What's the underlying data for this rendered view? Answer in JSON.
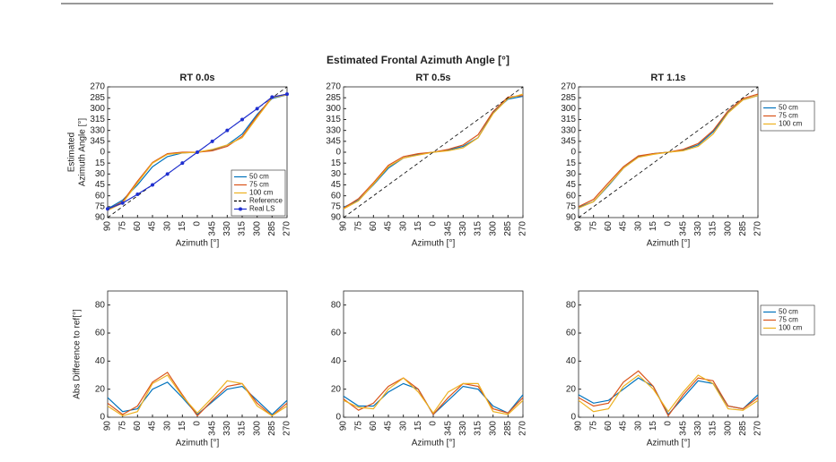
{
  "title": "Estimated Frontal Azimuth Angle [°]",
  "chart_data": [
    {
      "type": "line",
      "title": "RT 0.0s",
      "xlabel": "Azimuth [°]",
      "ylabel": [
        "Estimated",
        "Azimuth Angle [°]"
      ],
      "legend": "lower right",
      "x": [
        90,
        75,
        60,
        45,
        30,
        15,
        0,
        -15,
        -30,
        -45,
        -60,
        -75,
        -90
      ],
      "xlim": [
        90,
        -90
      ],
      "xticks": [
        90,
        75,
        60,
        45,
        30,
        15,
        0,
        {
          "value": -15,
          "label": "345"
        },
        {
          "value": -30,
          "label": "330"
        },
        {
          "value": -45,
          "label": "315"
        },
        {
          "value": -60,
          "label": "300"
        },
        {
          "value": -75,
          "label": "285"
        },
        {
          "value": -90,
          "label": "270"
        }
      ],
      "ylim": [
        90,
        -90
      ],
      "yticks": [
        {
          "value": -90,
          "label": "270"
        },
        {
          "value": -75,
          "label": "285"
        },
        {
          "value": -60,
          "label": "300"
        },
        {
          "value": -45,
          "label": "315"
        },
        {
          "value": -30,
          "label": "330"
        },
        {
          "value": -15,
          "label": "345"
        },
        0,
        15,
        30,
        45,
        60,
        75,
        90
      ],
      "series": [
        {
          "name": "50 cm",
          "color": "#0072bd",
          "values": [
            78,
            66,
            45,
            20,
            6,
            1,
            0,
            -3,
            -10,
            -25,
            -52,
            -74,
            -79
          ]
        },
        {
          "name": "75 cm",
          "color": "#d95319",
          "values": [
            79,
            68,
            40,
            14,
            2,
            0,
            0,
            -2,
            -8,
            -22,
            -50,
            -76,
            -80
          ]
        },
        {
          "name": "100 cm",
          "color": "#edb120",
          "values": [
            80,
            70,
            42,
            15,
            3,
            1,
            0,
            -4,
            -10,
            -20,
            -48,
            -75,
            -79
          ]
        },
        {
          "name": "Reference",
          "color": "#000000",
          "dash": true,
          "values": [
            90,
            75,
            60,
            45,
            30,
            15,
            0,
            -15,
            -30,
            -45,
            -60,
            -75,
            -90
          ]
        },
        {
          "name": "Real LS",
          "color": "#1f2fd0",
          "marker": true,
          "values": [
            78,
            70,
            58,
            45,
            30,
            15,
            0,
            -15,
            -30,
            -45,
            -60,
            -76,
            -80
          ]
        }
      ]
    },
    {
      "type": "line",
      "title": "RT 0.5s",
      "xlabel": "Azimuth [°]",
      "x": [
        90,
        75,
        60,
        45,
        30,
        15,
        0,
        -15,
        -30,
        -45,
        -60,
        -75,
        -90
      ],
      "xlim": [
        90,
        -90
      ],
      "xticks": [
        90,
        75,
        60,
        45,
        30,
        15,
        0,
        {
          "value": -15,
          "label": "345"
        },
        {
          "value": -30,
          "label": "330"
        },
        {
          "value": -45,
          "label": "315"
        },
        {
          "value": -60,
          "label": "300"
        },
        {
          "value": -75,
          "label": "285"
        },
        {
          "value": -90,
          "label": "270"
        }
      ],
      "ylim": [
        90,
        -90
      ],
      "yticks": [
        {
          "value": -90,
          "label": "270"
        },
        {
          "value": -75,
          "label": "285"
        },
        {
          "value": -60,
          "label": "300"
        },
        {
          "value": -45,
          "label": "315"
        },
        {
          "value": -30,
          "label": "330"
        },
        {
          "value": -15,
          "label": "345"
        },
        0,
        15,
        30,
        45,
        60,
        75,
        90
      ],
      "series": [
        {
          "color": "#0072bd",
          "values": [
            76,
            66,
            45,
            22,
            8,
            3,
            0,
            -3,
            -8,
            -20,
            -55,
            -73,
            -77
          ]
        },
        {
          "color": "#d95319",
          "values": [
            77,
            64,
            42,
            18,
            6,
            2,
            0,
            -4,
            -10,
            -24,
            -56,
            -76,
            -78
          ]
        },
        {
          "color": "#edb120",
          "values": [
            78,
            67,
            44,
            20,
            8,
            4,
            0,
            -2,
            -6,
            -20,
            -53,
            -74,
            -80
          ]
        },
        {
          "color": "#000000",
          "dash": true,
          "values": [
            90,
            75,
            60,
            45,
            30,
            15,
            0,
            -15,
            -30,
            -45,
            -60,
            -75,
            -90
          ]
        }
      ]
    },
    {
      "type": "line",
      "title": "RT 1.1s",
      "xlabel": "Azimuth [°]",
      "legend": "outside right",
      "x": [
        90,
        75,
        60,
        45,
        30,
        15,
        0,
        -15,
        -30,
        -45,
        -60,
        -75,
        -90
      ],
      "xlim": [
        90,
        -90
      ],
      "xticks": [
        90,
        75,
        60,
        45,
        30,
        15,
        0,
        {
          "value": -15,
          "label": "345"
        },
        {
          "value": -30,
          "label": "330"
        },
        {
          "value": -45,
          "label": "315"
        },
        {
          "value": -60,
          "label": "300"
        },
        {
          "value": -75,
          "label": "285"
        },
        {
          "value": -90,
          "label": "270"
        }
      ],
      "ylim": [
        90,
        -90
      ],
      "yticks": [
        {
          "value": -90,
          "label": "270"
        },
        {
          "value": -75,
          "label": "285"
        },
        {
          "value": -60,
          "label": "300"
        },
        {
          "value": -45,
          "label": "315"
        },
        {
          "value": -30,
          "label": "330"
        },
        {
          "value": -15,
          "label": "345"
        },
        0,
        15,
        30,
        45,
        60,
        75,
        90
      ],
      "series": [
        {
          "name": "50 cm",
          "color": "#0072bd",
          "values": [
            76,
            68,
            46,
            22,
            6,
            2,
            0,
            -3,
            -10,
            -28,
            -55,
            -72,
            -78
          ]
        },
        {
          "name": "75 cm",
          "color": "#d95319",
          "values": [
            75,
            65,
            42,
            20,
            5,
            2,
            0,
            -4,
            -12,
            -30,
            -57,
            -74,
            -80
          ]
        },
        {
          "name": "100 cm",
          "color": "#edb120",
          "values": [
            77,
            68,
            45,
            22,
            7,
            3,
            0,
            -2,
            -8,
            -25,
            -54,
            -72,
            -78
          ]
        },
        {
          "color": "#000000",
          "dash": true,
          "values": [
            90,
            75,
            60,
            45,
            30,
            15,
            0,
            -15,
            -30,
            -45,
            -60,
            -75,
            -90
          ]
        }
      ]
    },
    {
      "type": "line",
      "xlabel": "Azimuth [°]",
      "ylabel": [
        "Abs Difference to ref[°]"
      ],
      "x": [
        90,
        75,
        60,
        45,
        30,
        15,
        0,
        -15,
        -30,
        -45,
        -60,
        -75,
        -90
      ],
      "xlim": [
        90,
        -90
      ],
      "xticks": [
        90,
        75,
        60,
        45,
        30,
        15,
        0,
        {
          "value": -15,
          "label": "345"
        },
        {
          "value": -30,
          "label": "330"
        },
        {
          "value": -45,
          "label": "315"
        },
        {
          "value": -60,
          "label": "300"
        },
        {
          "value": -75,
          "label": "285"
        },
        {
          "value": -90,
          "label": "270"
        }
      ],
      "ylim": [
        0,
        90
      ],
      "yticks": [
        0,
        20,
        40,
        60,
        80
      ],
      "series": [
        {
          "color": "#0072bd",
          "values": [
            14,
            4,
            6,
            20,
            25,
            14,
            2,
            11,
            20,
            22,
            12,
            2,
            12
          ]
        },
        {
          "color": "#d95319",
          "values": [
            10,
            2,
            8,
            25,
            32,
            16,
            1,
            12,
            22,
            24,
            10,
            1,
            10
          ]
        },
        {
          "color": "#edb120",
          "values": [
            8,
            1,
            4,
            24,
            30,
            15,
            3,
            14,
            26,
            24,
            8,
            1,
            8
          ]
        }
      ]
    },
    {
      "type": "line",
      "xlabel": "Azimuth [°]",
      "x": [
        90,
        75,
        60,
        45,
        30,
        15,
        0,
        -15,
        -30,
        -45,
        -60,
        -75,
        -90
      ],
      "xlim": [
        90,
        -90
      ],
      "xticks": [
        90,
        75,
        60,
        45,
        30,
        15,
        0,
        {
          "value": -15,
          "label": "345"
        },
        {
          "value": -30,
          "label": "330"
        },
        {
          "value": -45,
          "label": "315"
        },
        {
          "value": -60,
          "label": "300"
        },
        {
          "value": -75,
          "label": "285"
        },
        {
          "value": -90,
          "label": "270"
        }
      ],
      "ylim": [
        0,
        90
      ],
      "yticks": [
        0,
        20,
        40,
        60,
        80
      ],
      "series": [
        {
          "color": "#0072bd",
          "values": [
            15,
            8,
            8,
            18,
            24,
            20,
            2,
            12,
            22,
            20,
            8,
            3,
            16
          ]
        },
        {
          "color": "#d95319",
          "values": [
            13,
            5,
            10,
            22,
            28,
            20,
            2,
            14,
            24,
            22,
            6,
            3,
            14
          ]
        },
        {
          "color": "#edb120",
          "values": [
            12,
            7,
            6,
            20,
            28,
            18,
            3,
            18,
            24,
            24,
            4,
            2,
            12
          ]
        }
      ]
    },
    {
      "type": "line",
      "xlabel": "Azimuth [°]",
      "legend": "outside right",
      "x": [
        90,
        75,
        60,
        45,
        30,
        15,
        0,
        -15,
        -30,
        -45,
        -60,
        -75,
        -90
      ],
      "xlim": [
        90,
        -90
      ],
      "xticks": [
        90,
        75,
        60,
        45,
        30,
        15,
        0,
        {
          "value": -15,
          "label": "345"
        },
        {
          "value": -30,
          "label": "330"
        },
        {
          "value": -45,
          "label": "315"
        },
        {
          "value": -60,
          "label": "300"
        },
        {
          "value": -75,
          "label": "285"
        },
        {
          "value": -90,
          "label": "270"
        }
      ],
      "ylim": [
        0,
        90
      ],
      "yticks": [
        0,
        20,
        40,
        60,
        80
      ],
      "series": [
        {
          "name": "50 cm",
          "color": "#0072bd",
          "values": [
            16,
            10,
            12,
            20,
            28,
            22,
            2,
            14,
            26,
            24,
            8,
            6,
            16
          ]
        },
        {
          "name": "75 cm",
          "color": "#d95319",
          "values": [
            14,
            8,
            10,
            25,
            33,
            22,
            1,
            16,
            28,
            26,
            8,
            6,
            14
          ]
        },
        {
          "name": "100 cm",
          "color": "#edb120",
          "values": [
            12,
            4,
            6,
            22,
            30,
            20,
            4,
            18,
            30,
            24,
            6,
            5,
            12
          ]
        }
      ]
    }
  ]
}
